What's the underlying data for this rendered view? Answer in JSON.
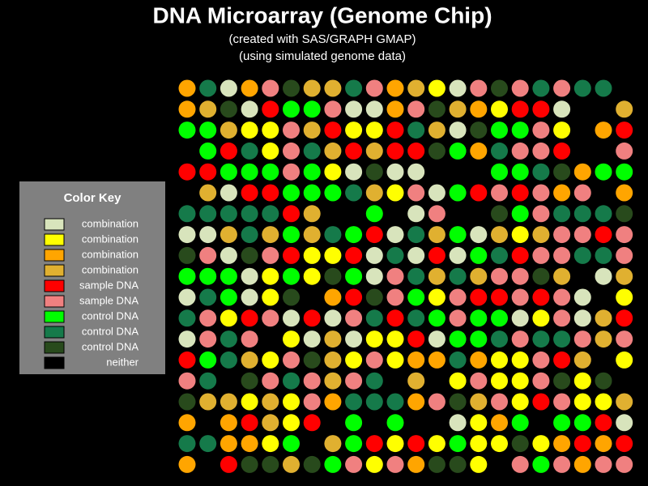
{
  "chart_data": {
    "type": "dot-grid",
    "title": "DNA Microarray (Genome Chip)",
    "subtitle": [
      "(created with SAS/GRAPH GMAP)",
      "(using simulated genome data)"
    ],
    "legend_title": "Color Key",
    "key": [
      {
        "label": "combination",
        "color": "#d8e4bc"
      },
      {
        "label": "combination",
        "color": "#ffff00"
      },
      {
        "label": "combination",
        "color": "#ffa500"
      },
      {
        "label": "combination",
        "color": "#e0b030"
      },
      {
        "label": "sample DNA",
        "color": "#ff0000"
      },
      {
        "label": "sample DNA",
        "color": "#f08080"
      },
      {
        "label": "control DNA",
        "color": "#00ff00"
      },
      {
        "label": "control DNA",
        "color": "#157a4a"
      },
      {
        "label": "control DNA",
        "color": "#284a1c"
      },
      {
        "label": "neither",
        "color": "#000000"
      }
    ],
    "cells": [
      [
        2,
        7,
        0,
        2,
        5,
        8,
        3,
        3,
        7,
        5,
        2,
        3,
        1,
        0,
        5,
        8,
        5,
        7,
        5,
        7,
        7,
        9
      ],
      [
        2,
        3,
        8,
        0,
        4,
        6,
        6,
        5,
        0,
        0,
        2,
        5,
        8,
        3,
        2,
        1,
        4,
        4,
        0,
        9,
        9,
        3
      ],
      [
        6,
        6,
        3,
        1,
        1,
        5,
        3,
        4,
        1,
        1,
        4,
        7,
        3,
        0,
        8,
        6,
        6,
        5,
        1,
        9,
        2,
        4
      ],
      [
        9,
        6,
        4,
        7,
        1,
        5,
        7,
        3,
        4,
        3,
        4,
        4,
        8,
        6,
        2,
        7,
        5,
        5,
        4,
        9,
        9,
        5
      ],
      [
        4,
        4,
        6,
        6,
        6,
        5,
        6,
        1,
        0,
        8,
        0,
        0,
        9,
        9,
        9,
        6,
        6,
        7,
        8,
        2,
        6,
        6
      ],
      [
        9,
        3,
        0,
        4,
        4,
        6,
        6,
        6,
        7,
        3,
        1,
        5,
        0,
        6,
        4,
        5,
        4,
        5,
        2,
        5,
        9,
        2
      ],
      [
        7,
        7,
        7,
        7,
        7,
        4,
        3,
        9,
        9,
        6,
        9,
        0,
        5,
        9,
        9,
        8,
        6,
        5,
        7,
        7,
        7,
        8
      ],
      [
        0,
        0,
        3,
        7,
        3,
        6,
        3,
        7,
        6,
        4,
        0,
        7,
        3,
        6,
        0,
        3,
        1,
        3,
        5,
        5,
        4,
        5
      ],
      [
        8,
        5,
        0,
        8,
        5,
        4,
        1,
        1,
        4,
        0,
        7,
        0,
        4,
        0,
        6,
        7,
        4,
        5,
        5,
        7,
        7,
        5
      ],
      [
        6,
        6,
        6,
        0,
        1,
        6,
        1,
        8,
        6,
        0,
        5,
        7,
        3,
        7,
        3,
        5,
        5,
        8,
        3,
        9,
        0,
        3
      ],
      [
        0,
        7,
        6,
        0,
        1,
        8,
        9,
        2,
        4,
        8,
        5,
        6,
        1,
        5,
        4,
        4,
        5,
        4,
        5,
        0,
        9,
        1
      ],
      [
        7,
        5,
        1,
        4,
        5,
        0,
        4,
        0,
        5,
        7,
        4,
        7,
        6,
        5,
        6,
        6,
        0,
        1,
        5,
        0,
        3,
        4
      ],
      [
        0,
        5,
        7,
        5,
        9,
        1,
        0,
        3,
        0,
        1,
        1,
        4,
        0,
        6,
        6,
        7,
        5,
        7,
        7,
        5,
        3,
        5
      ],
      [
        4,
        6,
        7,
        3,
        1,
        5,
        8,
        3,
        1,
        5,
        1,
        2,
        2,
        7,
        2,
        1,
        1,
        5,
        4,
        3,
        9,
        1
      ],
      [
        5,
        7,
        9,
        8,
        5,
        7,
        5,
        3,
        5,
        7,
        9,
        3,
        9,
        1,
        5,
        1,
        1,
        5,
        8,
        1,
        8,
        9
      ],
      [
        8,
        3,
        3,
        1,
        3,
        1,
        5,
        2,
        7,
        7,
        7,
        2,
        5,
        8,
        3,
        5,
        1,
        4,
        5,
        1,
        1,
        3
      ],
      [
        2,
        9,
        2,
        4,
        3,
        1,
        4,
        9,
        6,
        9,
        6,
        9,
        9,
        0,
        1,
        2,
        6,
        9,
        6,
        6,
        4,
        0
      ],
      [
        7,
        7,
        2,
        2,
        1,
        6,
        9,
        3,
        6,
        4,
        1,
        4,
        1,
        6,
        1,
        1,
        8,
        1,
        2,
        4,
        2,
        4
      ],
      [
        2,
        9,
        4,
        8,
        8,
        3,
        8,
        6,
        5,
        1,
        5,
        2,
        8,
        8,
        1,
        9,
        5,
        6,
        5,
        2,
        5,
        5
      ]
    ]
  }
}
